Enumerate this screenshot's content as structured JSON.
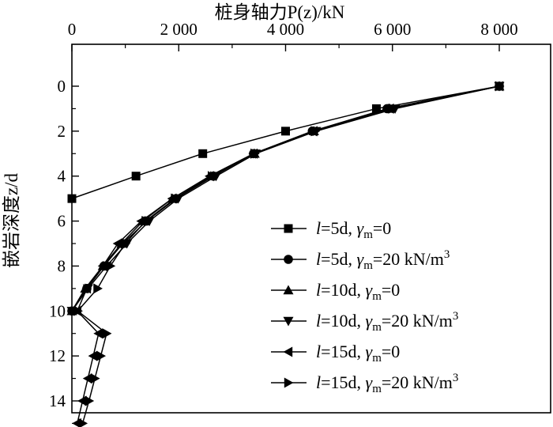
{
  "chart_data": {
    "type": "line",
    "xlabel": "桩身轴力P(z)/kN",
    "ylabel": "嵌岩深度z/d",
    "x_axis_position": "top",
    "y_inverted": true,
    "xlim": [
      0,
      8900
    ],
    "ylim": [
      0,
      15.3
    ],
    "x_ticks": [
      0,
      2000,
      4000,
      6000,
      8000
    ],
    "x_tick_labels": [
      "0",
      "2 000",
      "4 000",
      "6 000",
      "8 000"
    ],
    "y_ticks": [
      0,
      2,
      4,
      6,
      8,
      10,
      12,
      14
    ],
    "y_tick_labels": [
      "0",
      "2",
      "4",
      "6",
      "8",
      "10",
      "12",
      "14"
    ],
    "grid": false,
    "legend_position": "bottom-right",
    "series": [
      {
        "name": "l=5d, γm=0",
        "marker": "square",
        "x": [
          8000,
          5700,
          4000,
          2450,
          1200,
          0
        ],
        "y": [
          0,
          1,
          2,
          3,
          4,
          5
        ]
      },
      {
        "name": "l=5d, γm=20 kN/m3",
        "marker": "circle",
        "x": [
          8000,
          5900,
          4500,
          3400,
          2650,
          1950,
          1400,
          950,
          600,
          280,
          0
        ],
        "y": [
          0,
          1,
          2,
          3,
          4,
          5,
          6,
          7,
          8,
          9,
          10
        ]
      },
      {
        "name": "l=10d, γm=0",
        "marker": "triangle-up",
        "x": [
          8000,
          5950,
          4530,
          3420,
          2600,
          1880,
          1330,
          930,
          580,
          250,
          0
        ],
        "y": [
          0,
          1,
          2,
          3,
          4,
          5,
          6,
          7,
          8,
          9,
          10
        ]
      },
      {
        "name": "l=10d, γm=20 kN/m3",
        "marker": "triangle-down",
        "x": [
          8000,
          6050,
          4570,
          3440,
          2700,
          1990,
          1450,
          1030,
          650,
          300,
          0
        ],
        "y": [
          0,
          1,
          2,
          3,
          4,
          5,
          6,
          7,
          8,
          9,
          10
        ]
      },
      {
        "name": "l=15d, γm=0",
        "marker": "triangle-left",
        "x": [
          8000,
          5950,
          4520,
          3400,
          2580,
          1880,
          1300,
          860,
          580,
          280,
          100,
          500,
          400,
          300,
          200,
          100
        ],
        "y": [
          0,
          1,
          2,
          3,
          4,
          5,
          6,
          7,
          8,
          9,
          10,
          11,
          12,
          13,
          14,
          15
        ]
      },
      {
        "name": "l=15d, γm=20 kN/m3",
        "marker": "triangle-right",
        "x": [
          8000,
          6000,
          4550,
          3420,
          2620,
          1930,
          1380,
          1000,
          720,
          480,
          110,
          650,
          540,
          430,
          320,
          200
        ],
        "y": [
          0,
          1,
          2,
          3,
          4,
          5,
          6,
          7,
          8,
          9,
          10,
          11,
          12,
          13,
          14,
          15
        ]
      }
    ]
  },
  "legend_entries": [
    {
      "l_var": "l",
      "l_value": "=5d,",
      "gamma": "γ",
      "gamma_sub": "m",
      "value": "=0",
      "unit": "",
      "unit_sup": ""
    },
    {
      "l_var": "l",
      "l_value": "=5d,",
      "gamma": "γ",
      "gamma_sub": "m",
      "value": "=20 kN/m",
      "unit": "",
      "unit_sup": "3"
    },
    {
      "l_var": "l",
      "l_value": "=10d,",
      "gamma": "γ",
      "gamma_sub": "m",
      "value": "=0",
      "unit": "",
      "unit_sup": ""
    },
    {
      "l_var": "l",
      "l_value": "=10d,",
      "gamma": "γ",
      "gamma_sub": "m",
      "value": "=20 kN/m",
      "unit": "",
      "unit_sup": "3"
    },
    {
      "l_var": "l",
      "l_value": "=15d,",
      "gamma": "γ",
      "gamma_sub": "m",
      "value": "=0",
      "unit": "",
      "unit_sup": ""
    },
    {
      "l_var": "l",
      "l_value": "=15d,",
      "gamma": "γ",
      "gamma_sub": "m",
      "value": "=20 kN/m",
      "unit": "",
      "unit_sup": "3"
    }
  ]
}
